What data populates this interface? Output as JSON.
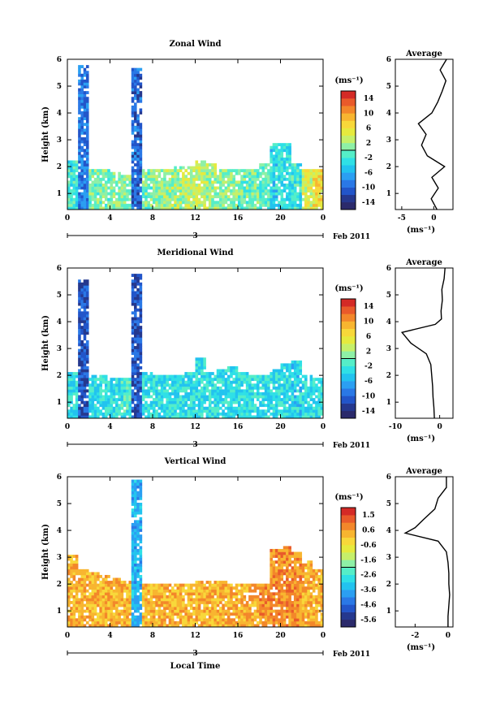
{
  "figure": {
    "x_axis_label": "Local Time",
    "date_label": "Feb 2011",
    "day_label": "3",
    "average_title": "Average",
    "units": "(ms⁻¹)"
  },
  "chart_data": [
    {
      "type": "heatmap",
      "title": "Zonal Wind",
      "xlabel": "Local Time",
      "ylabel": "Height (km)",
      "x_ticks": [
        "0",
        "4",
        "8",
        "12",
        "16",
        "20",
        "0"
      ],
      "y_ticks": [
        "1",
        "2",
        "3",
        "4",
        "5",
        "6"
      ],
      "xlim": [
        0,
        24
      ],
      "ylim": [
        0.4,
        6
      ],
      "colorbar": {
        "label": "(ms⁻¹)",
        "ticks": [
          "14",
          "10",
          "6",
          "2",
          "-2",
          "-6",
          "-10",
          "-14"
        ],
        "range": [
          -16,
          16
        ]
      },
      "echo_top_by_hour": [
        2.2,
        5.8,
        1.9,
        1.9,
        1.8,
        1.7,
        5.7,
        1.9,
        1.9,
        1.9,
        2.0,
        2.0,
        2.2,
        2.1,
        1.9,
        1.9,
        1.9,
        1.9,
        2.1,
        2.9,
        2.9,
        2.1,
        1.9,
        1.9
      ],
      "typical_value_by_hour": [
        -2,
        -9,
        0,
        0,
        1,
        1,
        -10,
        0,
        1,
        2,
        2,
        3,
        3,
        2,
        1,
        1,
        0,
        0,
        -1,
        -4,
        -3,
        -2,
        4,
        6
      ],
      "profile": {
        "xlabel": "(ms⁻¹)",
        "x_ticks": [
          "-5",
          "0"
        ],
        "xlim": [
          -6,
          3
        ],
        "heights": [
          0.4,
          0.8,
          1.2,
          1.6,
          2.0,
          2.4,
          2.8,
          3.2,
          3.6,
          4.0,
          4.4,
          4.8,
          5.2,
          5.6,
          6.0
        ],
        "values": [
          0.5,
          -0.4,
          0.7,
          -0.3,
          1.7,
          -1.0,
          -1.9,
          -1.2,
          -2.4,
          -0.3,
          0.6,
          1.3,
          1.9,
          1.0,
          2.0
        ]
      }
    },
    {
      "type": "heatmap",
      "title": "Meridional Wind",
      "xlabel": "Local Time",
      "ylabel": "Height (km)",
      "x_ticks": [
        "0",
        "4",
        "8",
        "12",
        "16",
        "20",
        "0"
      ],
      "y_ticks": [
        "1",
        "2",
        "3",
        "4",
        "5",
        "6"
      ],
      "xlim": [
        0,
        24
      ],
      "ylim": [
        0.4,
        6
      ],
      "colorbar": {
        "label": "(ms⁻¹)",
        "ticks": [
          "14",
          "10",
          "6",
          "2",
          "-2",
          "-6",
          "-10",
          "-14"
        ],
        "range": [
          -16,
          16
        ]
      },
      "echo_top_by_hour": [
        2.1,
        5.6,
        2.0,
        2.0,
        1.9,
        1.9,
        5.8,
        2.1,
        2.0,
        2.0,
        2.0,
        2.1,
        2.7,
        2.1,
        2.2,
        2.3,
        2.1,
        2.0,
        2.0,
        2.2,
        2.4,
        2.5,
        2.0,
        1.9
      ],
      "typical_value_by_hour": [
        -3,
        -11,
        -3,
        -3,
        -3,
        -2,
        -11,
        -3,
        -3,
        -3,
        -3,
        -3,
        -3,
        -3,
        -3,
        -3,
        -3,
        -3,
        -3,
        -3,
        -3,
        -4,
        -3,
        -3
      ],
      "profile": {
        "xlabel": "(ms⁻¹)",
        "x_ticks": [
          "-10",
          "0"
        ],
        "xlim": [
          -10,
          3
        ],
        "heights": [
          0.4,
          0.8,
          1.2,
          1.6,
          2.0,
          2.4,
          2.8,
          3.2,
          3.6,
          3.9,
          4.1,
          4.4,
          4.8,
          5.2,
          5.6,
          6.0
        ],
        "values": [
          -1.2,
          -1.3,
          -1.5,
          -1.6,
          -1.8,
          -2.0,
          -3.0,
          -6.5,
          -8.5,
          -1.0,
          0.4,
          0.3,
          0.6,
          0.5,
          1.0,
          1.2
        ]
      }
    },
    {
      "type": "heatmap",
      "title": "Vertical Wind",
      "xlabel": "Local Time",
      "ylabel": "Height (km)",
      "x_ticks": [
        "0",
        "4",
        "8",
        "12",
        "16",
        "20",
        "0"
      ],
      "y_ticks": [
        "1",
        "2",
        "3",
        "4",
        "5",
        "6"
      ],
      "xlim": [
        0,
        24
      ],
      "ylim": [
        0.4,
        6
      ],
      "colorbar": {
        "label": "(ms⁻¹)",
        "ticks": [
          "1.5",
          "0.6",
          "-0.6",
          "-1.6",
          "-2.6",
          "-3.6",
          "-4.6",
          "-5.6"
        ],
        "range": [
          -6,
          2
        ]
      },
      "echo_top_by_hour": [
        3.1,
        2.6,
        2.4,
        2.3,
        2.2,
        2.1,
        5.9,
        2.0,
        2.0,
        2.0,
        2.0,
        2.0,
        2.1,
        2.1,
        2.1,
        2.0,
        2.0,
        2.0,
        2.0,
        3.3,
        3.4,
        3.2,
        2.9,
        2.6
      ],
      "typical_value_by_hour": [
        0.3,
        0.3,
        0.2,
        0.2,
        0.2,
        0.2,
        -3.5,
        0.2,
        0.3,
        0.3,
        0.2,
        0.2,
        0.2,
        0.3,
        0.3,
        0.3,
        0.3,
        0.4,
        0.6,
        0.7,
        0.8,
        0.6,
        0.4,
        0.3
      ],
      "profile": {
        "xlabel": "(ms⁻¹)",
        "x_ticks": [
          "-2",
          "0"
        ],
        "xlim": [
          -3.2,
          0.3
        ],
        "heights": [
          0.4,
          0.8,
          1.2,
          1.6,
          2.0,
          2.4,
          2.8,
          3.2,
          3.6,
          3.9,
          4.1,
          4.4,
          4.8,
          5.2,
          5.6,
          6.0
        ],
        "values": [
          0.0,
          0.0,
          0.05,
          0.1,
          0.05,
          0.05,
          0.0,
          -0.1,
          -0.6,
          -2.6,
          -2.0,
          -1.5,
          -0.8,
          -0.6,
          -0.1,
          -0.1
        ]
      }
    }
  ]
}
